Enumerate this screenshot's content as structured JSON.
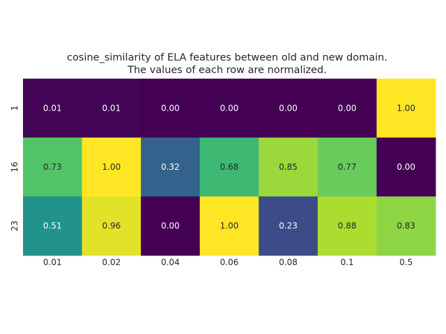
{
  "chart_data": {
    "type": "heatmap",
    "title_lines": [
      "cosine_similarity of ELA features between old and new domain.",
      "The values of each row are normalized."
    ],
    "xlabel": "",
    "ylabel": "",
    "x_categories": [
      "0.01",
      "0.02",
      "0.04",
      "0.06",
      "0.08",
      "0.1",
      "0.5"
    ],
    "y_categories": [
      "1",
      "16",
      "23"
    ],
    "values": [
      [
        0.01,
        0.01,
        0.0,
        0.0,
        0.0,
        0.0,
        1.0
      ],
      [
        0.73,
        1.0,
        0.32,
        0.68,
        0.85,
        0.77,
        0.0
      ],
      [
        0.51,
        0.96,
        0.0,
        1.0,
        0.23,
        0.88,
        0.83
      ]
    ],
    "value_format": "0.00",
    "colormap": "viridis",
    "vmin": 0,
    "vmax": 1,
    "colorbar": false,
    "grid": false,
    "label_color_dark": "#262626",
    "label_color_light": "#ffffff"
  }
}
